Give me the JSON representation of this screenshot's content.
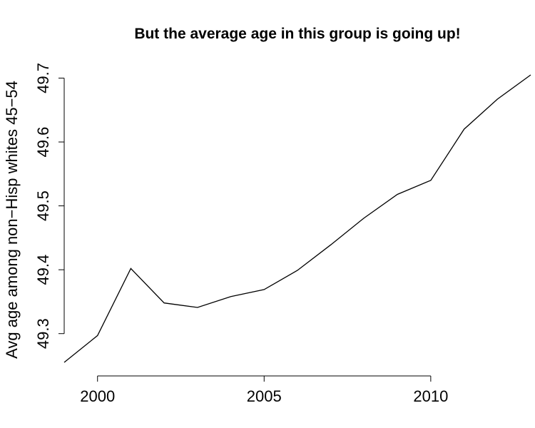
{
  "chart_data": {
    "type": "line",
    "title": "But the average age in this group is going up!",
    "xlabel": "",
    "ylabel": "Avg age among non−Hisp whites 45−54",
    "x": [
      1999,
      2000,
      2001,
      2002,
      2003,
      2004,
      2005,
      2006,
      2007,
      2008,
      2009,
      2010,
      2011,
      2012,
      2013
    ],
    "series": [
      {
        "values": [
          49.255,
          49.297,
          49.402,
          49.348,
          49.341,
          49.358,
          49.369,
          49.399,
          49.439,
          49.481,
          49.518,
          49.54,
          49.62,
          49.667,
          49.705
        ]
      }
    ],
    "xlim": [
      1999,
      2013
    ],
    "ylim": [
      49.255,
      49.705
    ],
    "xticks": [
      2000,
      2005,
      2010
    ],
    "yticks": [
      49.3,
      49.4,
      49.5,
      49.6,
      49.7
    ],
    "xtick_labels": [
      "2000",
      "2005",
      "2010"
    ],
    "ytick_labels": [
      "49.3",
      "49.4",
      "49.5",
      "49.6",
      "49.7"
    ],
    "grid": false,
    "legend": "none"
  }
}
